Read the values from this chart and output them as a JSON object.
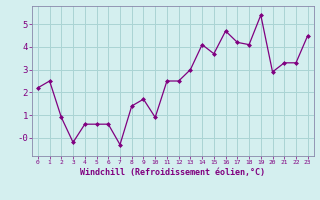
{
  "x_values": [
    0,
    1,
    2,
    3,
    4,
    5,
    6,
    7,
    8,
    9,
    10,
    11,
    12,
    13,
    14,
    15,
    16,
    17,
    18,
    19,
    20,
    21,
    22,
    23
  ],
  "y_values": [
    2.2,
    2.5,
    0.9,
    -0.2,
    0.6,
    0.6,
    0.6,
    -0.3,
    1.4,
    1.7,
    0.9,
    2.5,
    2.5,
    3.0,
    4.1,
    3.7,
    4.7,
    4.2,
    4.1,
    5.4,
    2.9,
    3.3,
    3.3,
    4.5
  ],
  "line_color": "#800080",
  "marker": "D",
  "marker_size": 2.0,
  "linewidth": 0.9,
  "xlabel": "Windchill (Refroidissement éolien,°C)",
  "xlim": [
    -0.5,
    23.5
  ],
  "ylim": [
    -0.8,
    5.8
  ],
  "yticks": [
    0,
    1,
    2,
    3,
    4,
    5
  ],
  "ytick_labels": [
    "-0",
    "1",
    "2",
    "3",
    "4",
    "5"
  ],
  "xticks": [
    0,
    1,
    2,
    3,
    4,
    5,
    6,
    7,
    8,
    9,
    10,
    11,
    12,
    13,
    14,
    15,
    16,
    17,
    18,
    19,
    20,
    21,
    22,
    23
  ],
  "bg_color": "#d4efef",
  "grid_color": "#aad4d4",
  "line_border_color": "#8888aa",
  "xlabel_color": "#800080",
  "tick_color": "#800080"
}
